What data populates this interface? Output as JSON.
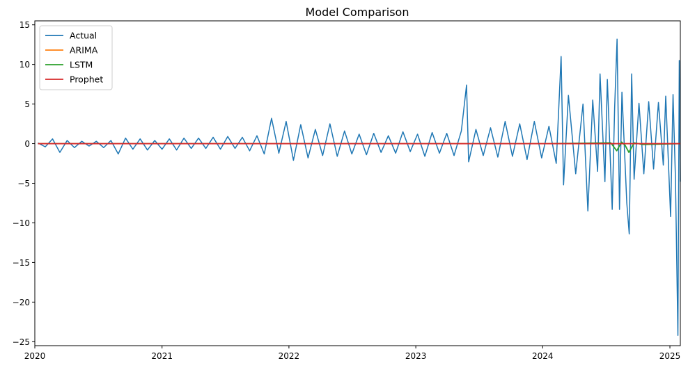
{
  "chart_data": {
    "type": "line",
    "title": "Model Comparison",
    "xlabel": "",
    "ylabel": "",
    "x_range": [
      "2020-01-01",
      "2025-01-31"
    ],
    "x_ticks": [
      "2020",
      "2021",
      "2022",
      "2023",
      "2024",
      "2025"
    ],
    "y_range": [
      -25.5,
      15.5
    ],
    "y_ticks": [
      -25,
      -20,
      -15,
      -10,
      -5,
      0,
      5,
      10,
      15
    ],
    "grid": false,
    "legend_position": "top-left",
    "series": [
      {
        "name": "Actual",
        "color": "#1f77b4",
        "points": [
          [
            "2020-01-10",
            0.1
          ],
          [
            "2020-01-31",
            -0.4
          ],
          [
            "2020-02-21",
            0.6
          ],
          [
            "2020-03-13",
            -1.1
          ],
          [
            "2020-04-03",
            0.4
          ],
          [
            "2020-04-24",
            -0.5
          ],
          [
            "2020-05-15",
            0.3
          ],
          [
            "2020-06-05",
            -0.3
          ],
          [
            "2020-06-26",
            0.3
          ],
          [
            "2020-07-17",
            -0.5
          ],
          [
            "2020-08-07",
            0.4
          ],
          [
            "2020-08-28",
            -1.3
          ],
          [
            "2020-09-18",
            0.7
          ],
          [
            "2020-10-09",
            -0.7
          ],
          [
            "2020-10-30",
            0.6
          ],
          [
            "2020-11-20",
            -0.8
          ],
          [
            "2020-12-11",
            0.4
          ],
          [
            "2021-01-01",
            -0.7
          ],
          [
            "2021-01-22",
            0.6
          ],
          [
            "2021-02-12",
            -0.8
          ],
          [
            "2021-03-05",
            0.7
          ],
          [
            "2021-03-26",
            -0.6
          ],
          [
            "2021-04-16",
            0.7
          ],
          [
            "2021-05-07",
            -0.6
          ],
          [
            "2021-05-28",
            0.8
          ],
          [
            "2021-06-18",
            -0.7
          ],
          [
            "2021-07-09",
            0.9
          ],
          [
            "2021-07-30",
            -0.6
          ],
          [
            "2021-08-20",
            0.8
          ],
          [
            "2021-09-10",
            -0.9
          ],
          [
            "2021-10-01",
            1.0
          ],
          [
            "2021-10-22",
            -1.3
          ],
          [
            "2021-11-12",
            3.2
          ],
          [
            "2021-12-03",
            -1.2
          ],
          [
            "2021-12-24",
            2.8
          ],
          [
            "2022-01-14",
            -2.1
          ],
          [
            "2022-02-04",
            2.4
          ],
          [
            "2022-02-25",
            -1.8
          ],
          [
            "2022-03-18",
            1.8
          ],
          [
            "2022-04-08",
            -1.5
          ],
          [
            "2022-04-29",
            2.5
          ],
          [
            "2022-05-20",
            -1.6
          ],
          [
            "2022-06-10",
            1.6
          ],
          [
            "2022-07-01",
            -1.3
          ],
          [
            "2022-07-22",
            1.2
          ],
          [
            "2022-08-12",
            -1.4
          ],
          [
            "2022-09-02",
            1.3
          ],
          [
            "2022-09-23",
            -1.1
          ],
          [
            "2022-10-14",
            1.0
          ],
          [
            "2022-11-04",
            -1.2
          ],
          [
            "2022-11-25",
            1.5
          ],
          [
            "2022-12-16",
            -1.0
          ],
          [
            "2023-01-06",
            1.2
          ],
          [
            "2023-01-27",
            -1.6
          ],
          [
            "2023-02-17",
            1.4
          ],
          [
            "2023-03-10",
            -1.2
          ],
          [
            "2023-03-31",
            1.3
          ],
          [
            "2023-04-21",
            -1.5
          ],
          [
            "2023-05-12",
            1.6
          ],
          [
            "2023-05-27",
            7.4
          ],
          [
            "2023-06-02",
            -2.3
          ],
          [
            "2023-06-23",
            1.8
          ],
          [
            "2023-07-14",
            -1.5
          ],
          [
            "2023-08-04",
            2.0
          ],
          [
            "2023-08-25",
            -1.7
          ],
          [
            "2023-09-15",
            2.8
          ],
          [
            "2023-10-06",
            -1.6
          ],
          [
            "2023-10-27",
            2.5
          ],
          [
            "2023-11-17",
            -2.0
          ],
          [
            "2023-12-08",
            2.8
          ],
          [
            "2023-12-29",
            -1.8
          ],
          [
            "2024-01-19",
            2.2
          ],
          [
            "2024-02-09",
            -2.5
          ],
          [
            "2024-02-23",
            11.0
          ],
          [
            "2024-03-01",
            -5.2
          ],
          [
            "2024-03-15",
            6.1
          ],
          [
            "2024-04-05",
            -3.8
          ],
          [
            "2024-04-26",
            5.0
          ],
          [
            "2024-05-10",
            -8.5
          ],
          [
            "2024-05-24",
            5.5
          ],
          [
            "2024-06-07",
            -3.5
          ],
          [
            "2024-06-14",
            8.8
          ],
          [
            "2024-06-28",
            -4.8
          ],
          [
            "2024-07-05",
            8.1
          ],
          [
            "2024-07-19",
            -8.3
          ],
          [
            "2024-07-26",
            4.5
          ],
          [
            "2024-08-02",
            13.2
          ],
          [
            "2024-08-09",
            -8.3
          ],
          [
            "2024-08-16",
            6.5
          ],
          [
            "2024-08-30",
            -7.5
          ],
          [
            "2024-09-06",
            -11.4
          ],
          [
            "2024-09-13",
            8.8
          ],
          [
            "2024-09-20",
            -4.5
          ],
          [
            "2024-10-04",
            5.1
          ],
          [
            "2024-10-18",
            -3.8
          ],
          [
            "2024-11-01",
            5.3
          ],
          [
            "2024-11-15",
            -3.2
          ],
          [
            "2024-11-29",
            5.2
          ],
          [
            "2024-12-13",
            -2.7
          ],
          [
            "2024-12-20",
            6.0
          ],
          [
            "2025-01-03",
            -9.2
          ],
          [
            "2025-01-10",
            6.2
          ],
          [
            "2025-01-17",
            -4.5
          ],
          [
            "2025-01-24",
            -24.2
          ],
          [
            "2025-01-28",
            10.5
          ],
          [
            "2025-01-31",
            -4.8
          ]
        ]
      },
      {
        "name": "ARIMA",
        "color": "#ff7f0e",
        "points": [
          [
            "2020-01-10",
            0.0
          ],
          [
            "2021-01-01",
            0.0
          ],
          [
            "2022-01-01",
            0.0
          ],
          [
            "2023-01-01",
            0.0
          ],
          [
            "2024-01-01",
            0.0
          ],
          [
            "2025-01-31",
            0.0
          ]
        ]
      },
      {
        "name": "LSTM",
        "color": "#2ca02c",
        "points": [
          [
            "2020-01-10",
            0.0
          ],
          [
            "2024-01-01",
            0.0
          ],
          [
            "2024-07-15",
            0.1
          ],
          [
            "2024-08-01",
            -0.9
          ],
          [
            "2024-08-15",
            0.2
          ],
          [
            "2024-08-25",
            -0.2
          ],
          [
            "2024-09-05",
            -1.1
          ],
          [
            "2024-09-20",
            0.1
          ],
          [
            "2024-10-15",
            -0.1
          ],
          [
            "2025-01-31",
            0.0
          ]
        ]
      },
      {
        "name": "Prophet",
        "color": "#d62728",
        "points": [
          [
            "2020-01-10",
            0.0
          ],
          [
            "2021-01-01",
            0.0
          ],
          [
            "2022-01-01",
            0.0
          ],
          [
            "2023-01-01",
            0.0
          ],
          [
            "2024-01-01",
            0.0
          ],
          [
            "2025-01-31",
            0.0
          ]
        ]
      }
    ]
  }
}
